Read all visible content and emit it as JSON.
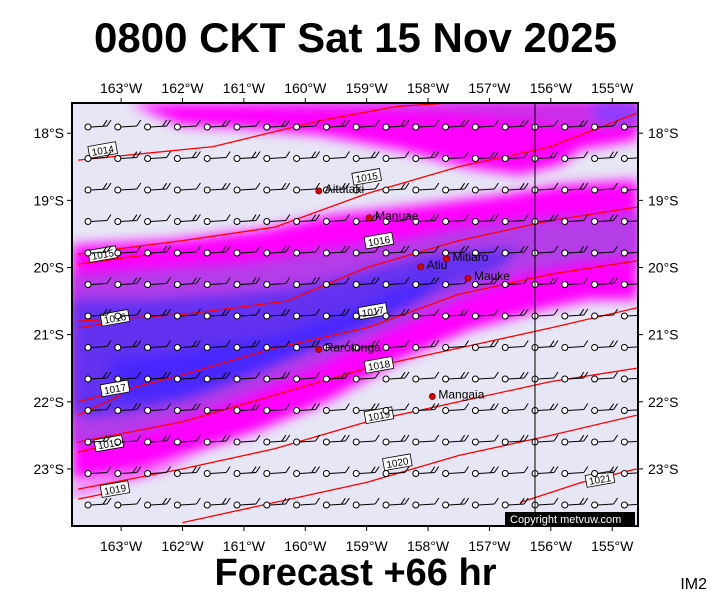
{
  "header": {
    "title": "0800 CKT Sat 15 Nov 2025"
  },
  "footer": {
    "subtitle": "Forecast +66 hr",
    "model_tag": "IM2",
    "copyright": "Copyright metvuw.com"
  },
  "map": {
    "lon_ticks": [
      "163°W",
      "162°W",
      "161°W",
      "160°W",
      "159°W",
      "158°W",
      "157°W",
      "156°W",
      "155°W"
    ],
    "lat_ticks": [
      "18°S",
      "19°S",
      "20°S",
      "21°S",
      "22°S",
      "23°S"
    ],
    "towns": [
      {
        "name": "Aitutaki",
        "lon": -159.78,
        "lat": -18.86
      },
      {
        "name": "Manuae",
        "lon": -158.96,
        "lat": -19.26
      },
      {
        "name": "Atiu",
        "lon": -158.12,
        "lat": -19.99
      },
      {
        "name": "Mitiaro",
        "lon": -157.7,
        "lat": -19.87
      },
      {
        "name": "Mauke",
        "lon": -157.35,
        "lat": -20.16
      },
      {
        "name": "Rarotonga",
        "lon": -159.78,
        "lat": -21.22
      },
      {
        "name": "Mangaia",
        "lon": -157.93,
        "lat": -21.92
      }
    ],
    "isobars": [
      {
        "label": "1014",
        "pts": [
          [
            -163.7,
            -18.4
          ],
          [
            -161.5,
            -18.2
          ],
          [
            -159.7,
            -17.8
          ],
          [
            -158.5,
            -17.6
          ],
          [
            -156.8,
            -17.5
          ],
          [
            -155.0,
            -17.2
          ]
        ],
        "label_at": [
          -163.3,
          -18.25
        ]
      },
      {
        "label": "1015",
        "pts": [
          [
            -163.7,
            -19.8
          ],
          [
            -162.0,
            -19.6
          ],
          [
            -160.5,
            -19.4
          ],
          [
            -159.0,
            -18.9
          ],
          [
            -157.5,
            -18.5
          ],
          [
            -156.0,
            -18.2
          ],
          [
            -154.6,
            -17.7
          ]
        ],
        "label_at": [
          -159.0,
          -18.65
        ]
      },
      {
        "label": "1015",
        "pts": [
          [
            -163.7,
            -19.95
          ],
          [
            -162.5,
            -19.8
          ]
        ],
        "label_at": [
          -163.3,
          -19.8
        ]
      },
      {
        "label": "1016",
        "pts": [
          [
            -163.7,
            -20.8
          ],
          [
            -162.0,
            -20.7
          ],
          [
            -160.3,
            -20.5
          ],
          [
            -159.0,
            -20.0
          ],
          [
            -157.5,
            -19.6
          ],
          [
            -156.0,
            -19.3
          ],
          [
            -154.6,
            -19.1
          ]
        ],
        "label_at": [
          -158.8,
          -19.6
        ]
      },
      {
        "label": "1016",
        "pts": [
          [
            -163.7,
            -20.9
          ],
          [
            -163.0,
            -20.8
          ]
        ],
        "label_at": [
          -163.1,
          -20.75
        ]
      },
      {
        "label": "1017",
        "pts": [
          [
            -163.7,
            -22.0
          ],
          [
            -162.0,
            -21.6
          ],
          [
            -160.5,
            -21.2
          ],
          [
            -159.0,
            -20.9
          ],
          [
            -157.5,
            -20.4
          ],
          [
            -156.0,
            -20.1
          ],
          [
            -154.6,
            -19.9
          ]
        ],
        "label_at": [
          -158.9,
          -20.65
        ]
      },
      {
        "label": "1017",
        "pts": [
          [
            -163.7,
            -22.2
          ],
          [
            -163.0,
            -21.9
          ]
        ],
        "label_at": [
          -163.1,
          -21.8
        ]
      },
      {
        "label": "1018",
        "pts": [
          [
            -163.7,
            -22.6
          ],
          [
            -162.0,
            -22.3
          ],
          [
            -160.5,
            -21.9
          ],
          [
            -159.0,
            -21.5
          ],
          [
            -157.5,
            -21.2
          ],
          [
            -156.0,
            -20.9
          ],
          [
            -154.6,
            -20.6
          ]
        ],
        "label_at": [
          -158.8,
          -21.45
        ]
      },
      {
        "label": "1018",
        "pts": [
          [
            -163.7,
            -22.75
          ],
          [
            -163.0,
            -22.6
          ]
        ],
        "label_at": [
          -163.2,
          -22.62
        ]
      },
      {
        "label": "1019",
        "pts": [
          [
            -163.7,
            -23.3
          ],
          [
            -162.0,
            -23.0
          ],
          [
            -160.5,
            -22.7
          ],
          [
            -159.0,
            -22.3
          ],
          [
            -157.5,
            -22.0
          ],
          [
            -156.0,
            -21.7
          ],
          [
            -154.6,
            -21.5
          ]
        ],
        "label_at": [
          -158.8,
          -22.2
        ]
      },
      {
        "label": "1019",
        "pts": [
          [
            -163.7,
            -23.45
          ],
          [
            -162.9,
            -23.3
          ]
        ],
        "label_at": [
          -163.1,
          -23.3
        ]
      },
      {
        "label": "1020",
        "pts": [
          [
            -162.0,
            -23.8
          ],
          [
            -160.5,
            -23.5
          ],
          [
            -159.0,
            -23.2
          ],
          [
            -157.5,
            -22.8
          ],
          [
            -156.0,
            -22.5
          ],
          [
            -154.6,
            -22.2
          ]
        ],
        "label_at": [
          -158.5,
          -22.9
        ]
      },
      {
        "label": "1021",
        "pts": [
          [
            -156.5,
            -23.5
          ],
          [
            -155.5,
            -23.2
          ],
          [
            -154.6,
            -23.0
          ]
        ],
        "label_at": [
          -155.2,
          -23.15
        ]
      }
    ]
  }
}
